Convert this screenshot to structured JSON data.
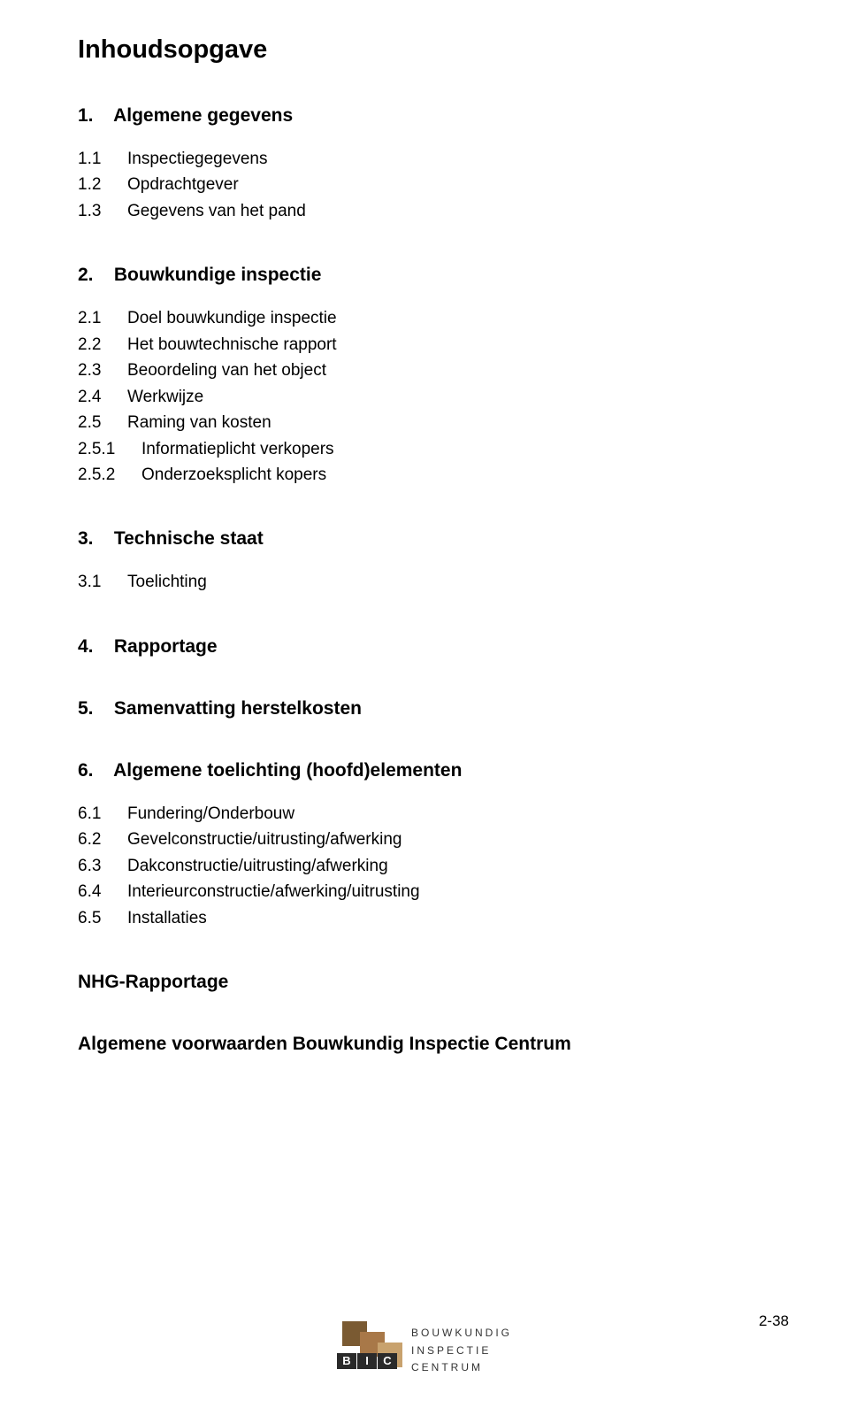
{
  "title": "Inhoudsopgave",
  "sections": [
    {
      "num": "1.",
      "label": "Algemene gegevens",
      "subs": [
        {
          "num": "1.1",
          "label": "Inspectiegegevens"
        },
        {
          "num": "1.2",
          "label": "Opdrachtgever"
        },
        {
          "num": "1.3",
          "label": "Gegevens van het pand"
        }
      ]
    },
    {
      "num": "2.",
      "label": "Bouwkundige inspectie",
      "subs": [
        {
          "num": "2.1",
          "label": "Doel bouwkundige inspectie"
        },
        {
          "num": "2.2",
          "label": "Het bouwtechnische rapport"
        },
        {
          "num": "2.3",
          "label": "Beoordeling van het object"
        },
        {
          "num": "2.4",
          "label": "Werkwijze"
        },
        {
          "num": "2.5",
          "label": "Raming van kosten"
        },
        {
          "num": "2.5.1",
          "label": "Informatieplicht verkopers",
          "indent": true
        },
        {
          "num": "2.5.2",
          "label": "Onderzoeksplicht kopers",
          "indent": true
        }
      ]
    },
    {
      "num": "3.",
      "label": "Technische staat",
      "subs": [
        {
          "num": "3.1",
          "label": "Toelichting"
        }
      ]
    },
    {
      "num": "4.",
      "label": "Rapportage",
      "subs": []
    },
    {
      "num": "5.",
      "label": "Samenvatting herstelkosten",
      "subs": []
    },
    {
      "num": "6.",
      "label": "Algemene toelichting (hoofd)elementen",
      "subs": [
        {
          "num": "6.1",
          "label": "Fundering/Onderbouw"
        },
        {
          "num": "6.2",
          "label": "Gevelconstructie/uitrusting/afwerking"
        },
        {
          "num": "6.3",
          "label": "Dakconstructie/uitrusting/afwerking"
        },
        {
          "num": "6.4",
          "label": "Interieurconstructie/afwerking/uitrusting"
        },
        {
          "num": "6.5",
          "label": "Installaties"
        }
      ]
    }
  ],
  "extras": [
    "NHG-Rapportage",
    "Algemene voorwaarden Bouwkundig Inspectie Centrum"
  ],
  "footer": {
    "page_number": "2-38",
    "logo_letters": [
      "B",
      "I",
      "C"
    ],
    "logo_lines": [
      "Bouwkundig",
      "Inspectie",
      "Centrum"
    ],
    "colors": {
      "sq1": "#7a5a32",
      "sq2": "#a87848",
      "sq3": "#c8a26e",
      "bic_bg": "#2a2a2a"
    }
  }
}
